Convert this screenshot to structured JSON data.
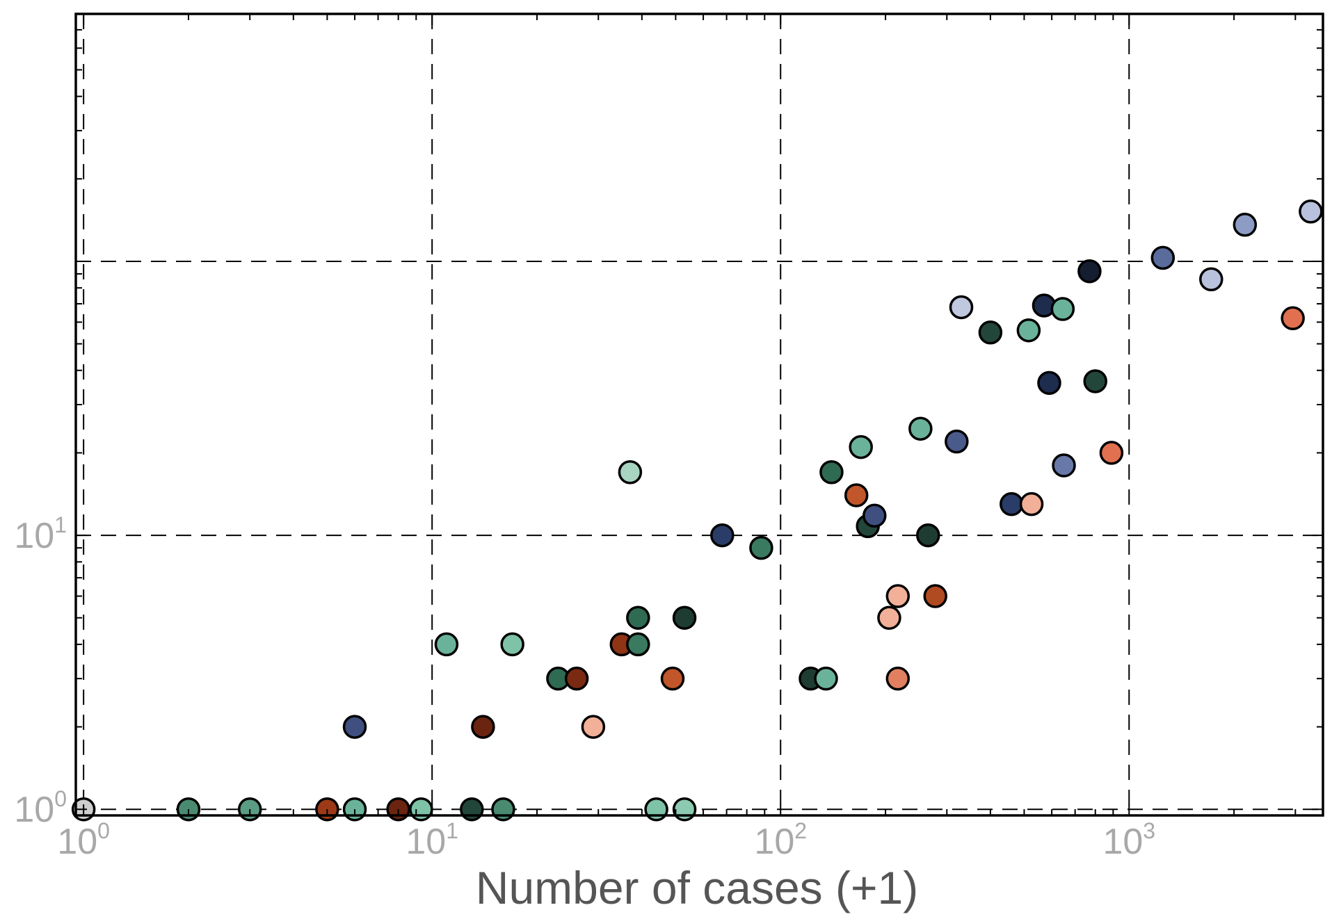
{
  "chart_data": {
    "type": "scatter",
    "xlabel": "Number of cases (+1)",
    "ylabel": "",
    "xscale": "log",
    "yscale": "log",
    "xlim": [
      0.95,
      3600
    ],
    "ylim": [
      0.95,
      800
    ],
    "grid": true,
    "x_tick_labels": [
      {
        "base": "10",
        "exp": "0",
        "value": 1
      },
      {
        "base": "10",
        "exp": "1",
        "value": 10
      },
      {
        "base": "10",
        "exp": "2",
        "value": 100
      },
      {
        "base": "10",
        "exp": "3",
        "value": 1000
      }
    ],
    "y_tick_labels": [
      {
        "base": "10",
        "exp": "0",
        "value": 1
      },
      {
        "base": "10",
        "exp": "1",
        "value": 10
      }
    ],
    "y_gridlines": [
      1,
      10,
      100
    ],
    "points": [
      {
        "x": 1,
        "y": 1,
        "color": "#cfcfcf"
      },
      {
        "x": 2,
        "y": 1,
        "color": "#4a8a70"
      },
      {
        "x": 3,
        "y": 1,
        "color": "#5a9c84"
      },
      {
        "x": 5,
        "y": 1,
        "color": "#9c3a18"
      },
      {
        "x": 6,
        "y": 1,
        "color": "#6ab39a"
      },
      {
        "x": 6,
        "y": 2,
        "color": "#3f5080"
      },
      {
        "x": 8,
        "y": 1,
        "color": "#6a2410"
      },
      {
        "x": 9.3,
        "y": 1,
        "color": "#7ec2a8"
      },
      {
        "x": 11,
        "y": 4,
        "color": "#6ab39a"
      },
      {
        "x": 13,
        "y": 1,
        "color": "#23463a"
      },
      {
        "x": 14,
        "y": 2,
        "color": "#6a2410"
      },
      {
        "x": 16,
        "y": 1,
        "color": "#4a8a70"
      },
      {
        "x": 17,
        "y": 4,
        "color": "#7ec2a8"
      },
      {
        "x": 23,
        "y": 3,
        "color": "#2f6a52"
      },
      {
        "x": 26,
        "y": 3,
        "color": "#7a2a12"
      },
      {
        "x": 29,
        "y": 2,
        "color": "#f2b098"
      },
      {
        "x": 35,
        "y": 4,
        "color": "#8f3414"
      },
      {
        "x": 37,
        "y": 17,
        "color": "#a8d4c2"
      },
      {
        "x": 39,
        "y": 5,
        "color": "#2f6a52"
      },
      {
        "x": 39,
        "y": 4,
        "color": "#3a7a60"
      },
      {
        "x": 44,
        "y": 1,
        "color": "#7ec2a8"
      },
      {
        "x": 49,
        "y": 3,
        "color": "#c0562a"
      },
      {
        "x": 53,
        "y": 5,
        "color": "#1f3c32"
      },
      {
        "x": 53,
        "y": 1,
        "color": "#8ccab2"
      },
      {
        "x": 68,
        "y": 10,
        "color": "#2a3c68"
      },
      {
        "x": 88,
        "y": 9,
        "color": "#3a7a60"
      },
      {
        "x": 122,
        "y": 3,
        "color": "#1f3c32"
      },
      {
        "x": 135,
        "y": 3,
        "color": "#6ab39a"
      },
      {
        "x": 140,
        "y": 17,
        "color": "#2f6a52"
      },
      {
        "x": 165,
        "y": 14,
        "color": "#c0562a"
      },
      {
        "x": 170,
        "y": 21,
        "color": "#6ab39a"
      },
      {
        "x": 178,
        "y": 10.8,
        "color": "#23463a"
      },
      {
        "x": 186,
        "y": 11.8,
        "color": "#3f5080"
      },
      {
        "x": 205,
        "y": 5,
        "color": "#f2b098"
      },
      {
        "x": 217,
        "y": 6,
        "color": "#f2b098"
      },
      {
        "x": 217,
        "y": 3,
        "color": "#e08060"
      },
      {
        "x": 252,
        "y": 24.5,
        "color": "#6ab39a"
      },
      {
        "x": 265,
        "y": 10,
        "color": "#1f3c32"
      },
      {
        "x": 278,
        "y": 6,
        "color": "#b04a20"
      },
      {
        "x": 320,
        "y": 22,
        "color": "#4a5a8a"
      },
      {
        "x": 330,
        "y": 68,
        "color": "#c0c8e0"
      },
      {
        "x": 400,
        "y": 55,
        "color": "#23463a"
      },
      {
        "x": 460,
        "y": 13,
        "color": "#2a3c68"
      },
      {
        "x": 515,
        "y": 56,
        "color": "#6ab39a"
      },
      {
        "x": 525,
        "y": 13,
        "color": "#f2b098"
      },
      {
        "x": 570,
        "y": 69,
        "color": "#1e2c4e"
      },
      {
        "x": 590,
        "y": 36,
        "color": "#1e2c4e"
      },
      {
        "x": 645,
        "y": 67,
        "color": "#6ab39a"
      },
      {
        "x": 650,
        "y": 18,
        "color": "#6878a8"
      },
      {
        "x": 770,
        "y": 92,
        "color": "#141e30"
      },
      {
        "x": 800,
        "y": 36.5,
        "color": "#23463a"
      },
      {
        "x": 890,
        "y": 20,
        "color": "#e07050"
      },
      {
        "x": 1250,
        "y": 103,
        "color": "#5a6c9c"
      },
      {
        "x": 1720,
        "y": 86,
        "color": "#b8c2dc"
      },
      {
        "x": 2150,
        "y": 136,
        "color": "#8c9cc4"
      },
      {
        "x": 2950,
        "y": 62,
        "color": "#e07050"
      },
      {
        "x": 3320,
        "y": 152,
        "color": "#b8c2dc"
      }
    ]
  }
}
